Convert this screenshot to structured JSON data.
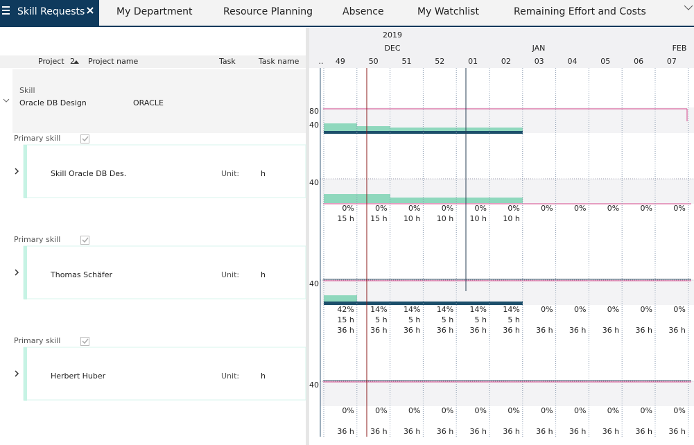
{
  "tabs": [
    "Skill Requests",
    "My Department",
    "Resource Planning",
    "Absence",
    "My Watchlist",
    "Remaining Effort and Costs"
  ],
  "grid_header": {
    "project": "Project",
    "sort_index": "2",
    "project_name": "Project name",
    "task": "Task",
    "task_name": "Task name"
  },
  "timeline": {
    "year": "2019",
    "months": [
      "DEC",
      "JAN",
      "FEB"
    ],
    "weeks": [
      "..",
      "49",
      "50",
      "51",
      "52",
      "01",
      "02",
      "03",
      "04",
      "05",
      "06",
      "07"
    ]
  },
  "skill_group": {
    "label": "Skill",
    "project": "Oracle DB Design",
    "name": "ORACLE",
    "scale": [
      "80",
      "40"
    ]
  },
  "rows": [
    {
      "primary_skill": "Primary skill",
      "name": "Skill Oracle DB Des.",
      "unit_label": "Unit:",
      "unit": "h",
      "scale": "40",
      "load": [
        "0%",
        "0%",
        "0%",
        "0%",
        "0%",
        "0%",
        "0%",
        "0%",
        "0%",
        "0%",
        "0%"
      ],
      "requested": [
        "15 h",
        "15 h",
        "10 h",
        "10 h",
        "10 h",
        "10 h"
      ]
    },
    {
      "primary_skill": "Primary skill",
      "name": "Thomas Schäfer",
      "unit_label": "Unit:",
      "unit": "h",
      "scale": "40",
      "load": [
        "42%",
        "14%",
        "14%",
        "14%",
        "14%",
        "14%",
        "0%",
        "0%",
        "0%",
        "0%",
        "0%"
      ],
      "requested": [
        "15 h",
        "5 h",
        "5 h",
        "5 h",
        "5 h",
        "5 h"
      ],
      "capacity": [
        "36 h",
        "36 h",
        "36 h",
        "36 h",
        "36 h",
        "36 h",
        "36 h",
        "36 h",
        "36 h",
        "36 h",
        "36 h"
      ]
    },
    {
      "primary_skill": "Primary skill",
      "name": "Herbert Huber",
      "unit_label": "Unit:",
      "unit": "h",
      "scale": "40",
      "load": [
        "0%",
        "0%",
        "0%",
        "0%",
        "0%",
        "0%",
        "0%",
        "0%",
        "0%",
        "0%",
        "0%"
      ],
      "capacity": [
        "36 h",
        "36 h",
        "36 h",
        "36 h",
        "36 h",
        "36 h",
        "36 h",
        "36 h",
        "36 h",
        "36 h",
        "36 h"
      ]
    }
  ]
}
